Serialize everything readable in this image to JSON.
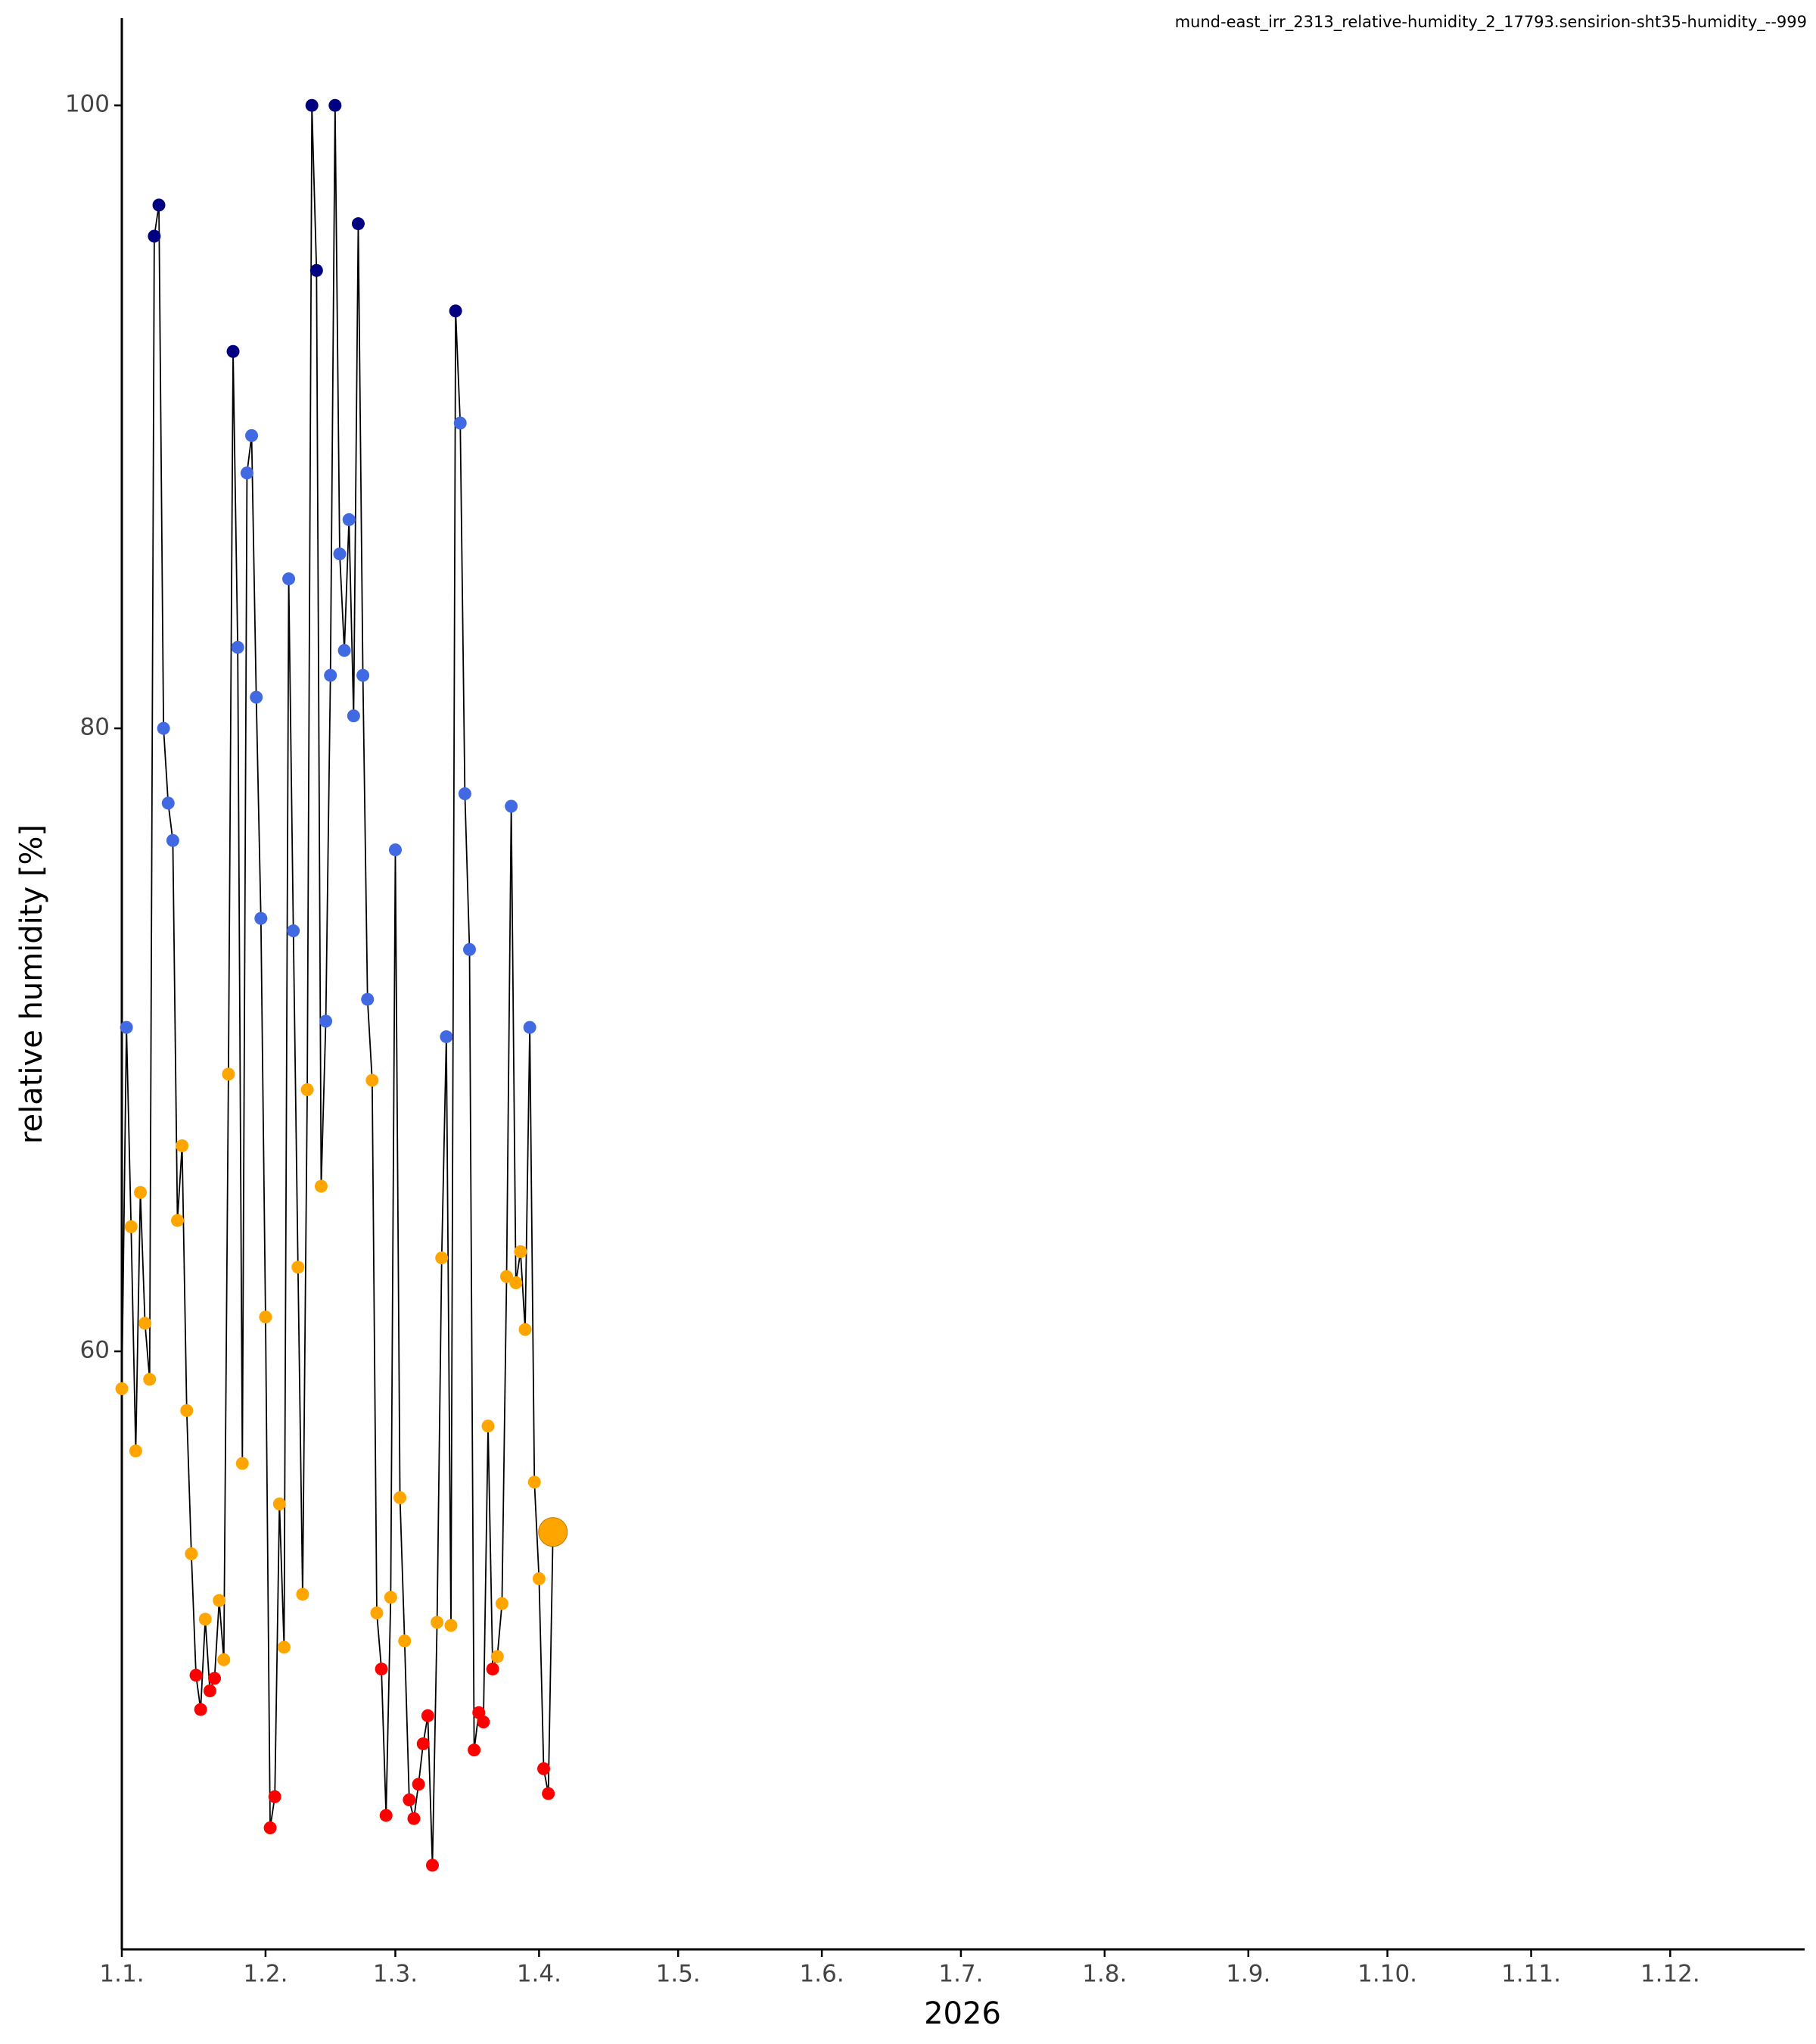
{
  "chart_data": {
    "type": "line-scatter",
    "title": "mund-east_irr_2313_relative-humidity_2_17793.sensirion-sht35-humidity_--999",
    "xlabel": "2026",
    "ylabel": "relative humidity [%]",
    "x": [
      "2026-01-01",
      "2026-01-02",
      "2026-01-03",
      "2026-01-04",
      "2026-01-05",
      "2026-01-06",
      "2026-01-07",
      "2026-01-08",
      "2026-01-09",
      "2026-01-10",
      "2026-01-11",
      "2026-01-12",
      "2026-01-13",
      "2026-01-14",
      "2026-01-15",
      "2026-01-16",
      "2026-01-17",
      "2026-01-18",
      "2026-01-19",
      "2026-01-20",
      "2026-01-21",
      "2026-01-22",
      "2026-01-23",
      "2026-01-24",
      "2026-01-25",
      "2026-01-26",
      "2026-01-27",
      "2026-01-28",
      "2026-01-29",
      "2026-01-30",
      "2026-01-31",
      "2026-02-01",
      "2026-02-02",
      "2026-02-03",
      "2026-02-04",
      "2026-02-05",
      "2026-02-06",
      "2026-02-07",
      "2026-02-08",
      "2026-02-09",
      "2026-02-10",
      "2026-02-11",
      "2026-02-12",
      "2026-02-13",
      "2026-02-14",
      "2026-02-15",
      "2026-02-16",
      "2026-02-17",
      "2026-02-18",
      "2026-02-19",
      "2026-02-20",
      "2026-02-21",
      "2026-02-22",
      "2026-02-23",
      "2026-02-24",
      "2026-02-25",
      "2026-02-26",
      "2026-02-27",
      "2026-02-28",
      "2026-03-01",
      "2026-03-02",
      "2026-03-03",
      "2026-03-04",
      "2026-03-05",
      "2026-03-06",
      "2026-03-07",
      "2026-03-08",
      "2026-03-09",
      "2026-03-10",
      "2026-03-11",
      "2026-03-12",
      "2026-03-13",
      "2026-03-14",
      "2026-03-15",
      "2026-03-16",
      "2026-03-17",
      "2026-03-18",
      "2026-03-19",
      "2026-03-20",
      "2026-03-21",
      "2026-03-22",
      "2026-03-23",
      "2026-03-24",
      "2026-03-25",
      "2026-03-26",
      "2026-03-27",
      "2026-03-28",
      "2026-03-29",
      "2026-03-30",
      "2026-03-31",
      "2026-04-01",
      "2026-04-02",
      "2026-04-03",
      "2026-04-04"
    ],
    "values": [
      58.8,
      70.4,
      64.0,
      56.8,
      65.1,
      60.9,
      59.1,
      95.8,
      96.8,
      80.0,
      77.6,
      76.4,
      64.2,
      66.6,
      58.1,
      53.5,
      49.6,
      48.5,
      51.4,
      49.1,
      49.5,
      52.0,
      50.1,
      68.9,
      92.1,
      82.6,
      56.4,
      88.2,
      89.4,
      81.0,
      73.9,
      61.1,
      44.7,
      45.7,
      55.1,
      50.5,
      84.8,
      73.5,
      62.7,
      52.2,
      68.4,
      100,
      94.7,
      65.3,
      70.6,
      81.7,
      100,
      85.6,
      82.5,
      86.7,
      80.4,
      96.2,
      81.7,
      71.3,
      68.7,
      51.6,
      49.8,
      45.1,
      52.1,
      76.1,
      55.3,
      50.7,
      45.6,
      45.0,
      46.1,
      47.4,
      48.3,
      43.5,
      51.3,
      63.0,
      70.1,
      51.2,
      93.4,
      89.8,
      77.9,
      72.9,
      47.2,
      48.4,
      48.1,
      57.6,
      49.8,
      50.2,
      51.9,
      62.4,
      77.5,
      62.2,
      63.2,
      60.7,
      70.4,
      55.8,
      52.7,
      46.6,
      45.8,
      54.2
    ],
    "colors": [
      "#ffa500",
      "#4169e1",
      "#ffa500",
      "#ffa500",
      "#ffa500",
      "#ffa500",
      "#ffa500",
      "#000080",
      "#000080",
      "#4169e1",
      "#4169e1",
      "#4169e1",
      "#ffa500",
      "#ffa500",
      "#ffa500",
      "#ffa500",
      "#ff0000",
      "#ff0000",
      "#ffa500",
      "#ff0000",
      "#ff0000",
      "#ffa500",
      "#ffa500",
      "#ffa500",
      "#000080",
      "#4169e1",
      "#ffa500",
      "#4169e1",
      "#4169e1",
      "#4169e1",
      "#4169e1",
      "#ffa500",
      "#ff0000",
      "#ff0000",
      "#ffa500",
      "#ffa500",
      "#4169e1",
      "#4169e1",
      "#ffa500",
      "#ffa500",
      "#ffa500",
      "#000080",
      "#000080",
      "#ffa500",
      "#4169e1",
      "#4169e1",
      "#000080",
      "#4169e1",
      "#4169e1",
      "#4169e1",
      "#4169e1",
      "#000080",
      "#4169e1",
      "#4169e1",
      "#ffa500",
      "#ffa500",
      "#ff0000",
      "#ff0000",
      "#ffa500",
      "#4169e1",
      "#ffa500",
      "#ffa500",
      "#ff0000",
      "#ff0000",
      "#ff0000",
      "#ff0000",
      "#ff0000",
      "#ff0000",
      "#ffa500",
      "#ffa500",
      "#4169e1",
      "#ffa500",
      "#000080",
      "#4169e1",
      "#4169e1",
      "#4169e1",
      "#ff0000",
      "#ff0000",
      "#ff0000",
      "#ffa500",
      "#ff0000",
      "#ffa500",
      "#ffa500",
      "#ffa500",
      "#4169e1",
      "#ffa500",
      "#ffa500",
      "#ffa500",
      "#4169e1",
      "#ffa500",
      "#ffa500",
      "#ff0000",
      "#ff0000",
      "#ffa500"
    ],
    "line_color": "#000000",
    "highlight_last": true,
    "xlim": [
      "2026-01-01",
      "2026-12-30"
    ],
    "xticks": [
      {
        "value": "2026-01-01",
        "label": "1.1."
      },
      {
        "value": "2026-02-01",
        "label": "1.2."
      },
      {
        "value": "2026-03-01",
        "label": "1.3."
      },
      {
        "value": "2026-04-01",
        "label": "1.4."
      },
      {
        "value": "2026-05-01",
        "label": "1.5."
      },
      {
        "value": "2026-06-01",
        "label": "1.6."
      },
      {
        "value": "2026-07-01",
        "label": "1.7."
      },
      {
        "value": "2026-08-01",
        "label": "1.8."
      },
      {
        "value": "2026-09-01",
        "label": "1.9."
      },
      {
        "value": "2026-10-01",
        "label": "1.10."
      },
      {
        "value": "2026-11-01",
        "label": "1.11."
      },
      {
        "value": "2026-12-01",
        "label": "1.12."
      }
    ],
    "ylim": [
      40.8,
      102.8
    ],
    "yticks": [
      60,
      80,
      100
    ],
    "grid": false
  }
}
